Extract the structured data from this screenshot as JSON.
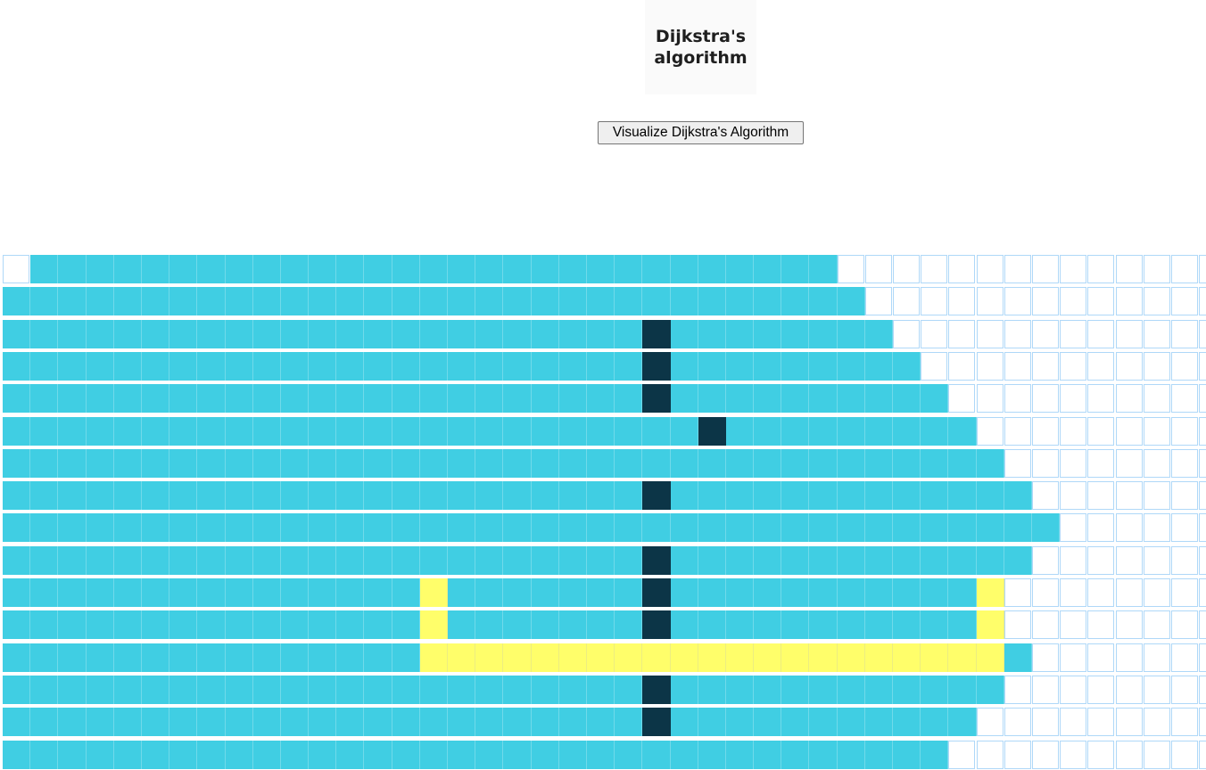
{
  "header": {
    "logo_text": "Dijkstra's\nalgorithm",
    "visualize_button_label": "Visualize Dijkstra's Algorithm"
  },
  "grid": {
    "columns": 44,
    "rows": [
      {
        "visited_through": 29,
        "unvisited_cols": [
          0
        ]
      },
      {
        "visited_through": 30
      },
      {
        "visited_through": 31,
        "walls": [
          23
        ]
      },
      {
        "visited_through": 32,
        "walls": [
          23
        ]
      },
      {
        "visited_through": 33,
        "walls": [
          23
        ]
      },
      {
        "visited_through": 34,
        "walls": [
          25
        ]
      },
      {
        "visited_through": 35
      },
      {
        "visited_through": 36,
        "walls": [
          23
        ]
      },
      {
        "visited_through": 37
      },
      {
        "visited_through": 36,
        "walls": [
          23
        ]
      },
      {
        "visited_through": 35,
        "walls": [
          23
        ],
        "path": [
          15,
          35
        ]
      },
      {
        "visited_through": 35,
        "walls": [
          23
        ],
        "path": [
          15,
          35
        ]
      },
      {
        "visited_through": 36,
        "path": [
          15,
          16,
          17,
          18,
          19,
          20,
          21,
          22,
          23,
          24,
          25,
          26,
          27,
          28,
          29,
          30,
          31,
          32,
          33,
          34,
          35
        ]
      },
      {
        "visited_through": 35,
        "walls": [
          23
        ]
      },
      {
        "visited_through": 34,
        "walls": [
          23
        ]
      },
      {
        "visited_through": 33
      }
    ],
    "colors": {
      "visited": "#40cee3",
      "wall": "#0c3547",
      "path": "#fffe6a",
      "unvisited": "#ffffff",
      "cell_border": "#afd8f8"
    }
  }
}
